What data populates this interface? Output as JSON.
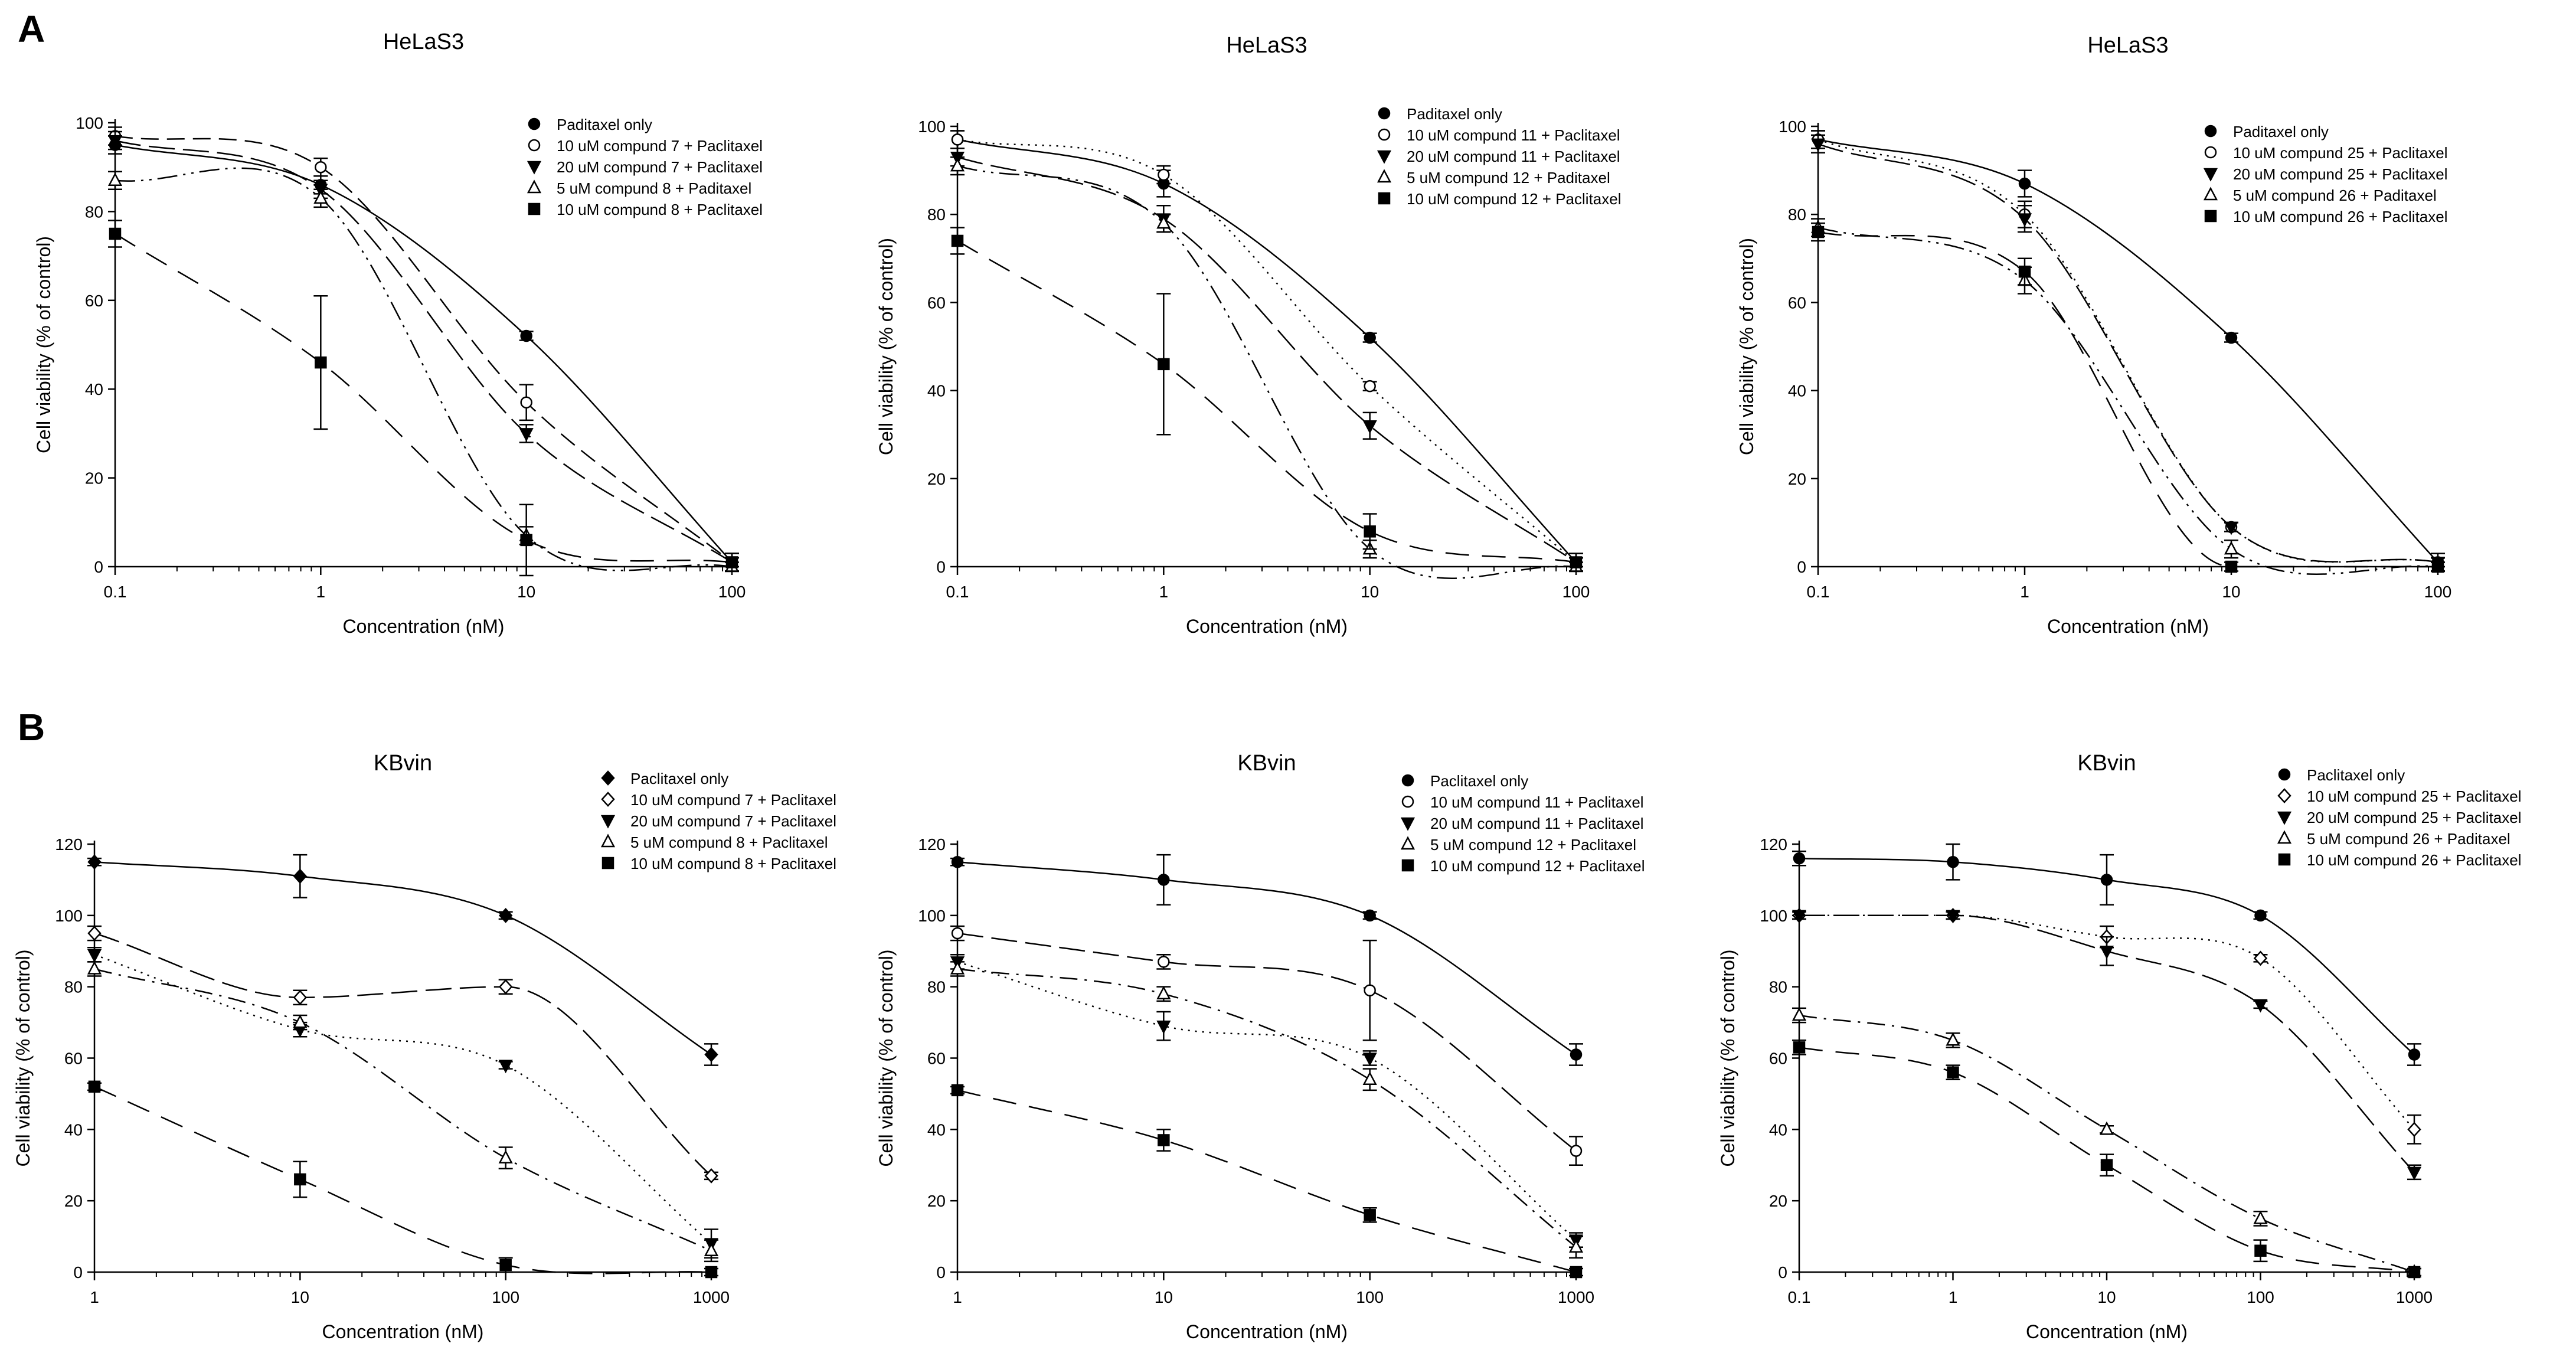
{
  "panels": {
    "a": "A",
    "b": "B"
  },
  "chart_data": [
    {
      "type": "line",
      "title": "HeLaS3",
      "xlabel": "Concentration (nM)",
      "ylabel": "Cell viability (% of control)",
      "xscale": "log",
      "xlim": [
        0.1,
        100
      ],
      "ylim": [
        0,
        100
      ],
      "xticks": [
        0.1,
        1,
        10,
        100
      ],
      "xtick_labels": [
        "0.1",
        "1",
        "10",
        "100"
      ],
      "yticks": [
        0,
        20,
        40,
        60,
        80,
        100
      ],
      "legend_position": "top-right",
      "x": [
        0.1,
        1,
        10,
        100
      ],
      "series": [
        {
          "name": "Paditaxel only",
          "marker": "circle-filled",
          "dash": "solid",
          "values": [
            95,
            86,
            52,
            1
          ],
          "errors": [
            2,
            2,
            1,
            2
          ]
        },
        {
          "name": "10 uM compund 7 + Paclitaxel",
          "marker": "circle-open",
          "dash": "dash",
          "values": [
            97,
            90,
            37,
            1
          ],
          "errors": [
            2,
            2,
            4,
            1
          ]
        },
        {
          "name": "20 uM compund 7 + Paclitaxel",
          "marker": "triangle-down-filled",
          "dash": "longdash",
          "values": [
            96,
            85,
            30,
            1
          ],
          "errors": [
            2,
            2,
            2,
            1
          ]
        },
        {
          "name": "5 uM compund 8 + Paditaxel",
          "marker": "triangle-up-open",
          "dash": "dashdotdot",
          "values": [
            87,
            83,
            7,
            0
          ],
          "errors": [
            2,
            2,
            2,
            1
          ]
        },
        {
          "name": "10 uM compund 8 + Paclitaxel",
          "marker": "square-filled",
          "dash": "bigdash",
          "values": [
            75,
            46,
            6,
            1
          ],
          "errors": [
            3,
            15,
            8,
            2
          ]
        }
      ]
    },
    {
      "type": "line",
      "title": "HeLaS3",
      "xlabel": "Concentration (nM)",
      "ylabel": "Cell viability (% of control)",
      "xscale": "log",
      "xlim": [
        0.1,
        100
      ],
      "ylim": [
        0,
        100
      ],
      "xticks": [
        0.1,
        1,
        10,
        100
      ],
      "xtick_labels": [
        "0.1",
        "1",
        "10",
        "100"
      ],
      "yticks": [
        0,
        20,
        40,
        60,
        80,
        100
      ],
      "legend_position": "top-right",
      "x": [
        0.1,
        1,
        10,
        100
      ],
      "series": [
        {
          "name": "Paditaxel only",
          "marker": "circle-filled",
          "dash": "solid",
          "values": [
            97,
            87,
            52,
            1
          ],
          "errors": [
            2,
            3,
            1,
            2
          ]
        },
        {
          "name": "10 uM compund 11 + Paclitaxel",
          "marker": "circle-open",
          "dash": "dot",
          "values": [
            97,
            89,
            41,
            1
          ],
          "errors": [
            2,
            2,
            1,
            1
          ]
        },
        {
          "name": "20 uM compund 11 + Paclitaxel",
          "marker": "triangle-down-filled",
          "dash": "longdash",
          "values": [
            93,
            79,
            32,
            1
          ],
          "errors": [
            2,
            3,
            3,
            1
          ]
        },
        {
          "name": "5 uM compund 12 + Paditaxel",
          "marker": "triangle-up-open",
          "dash": "dashdotdot",
          "values": [
            91,
            78,
            4,
            0
          ],
          "errors": [
            2,
            2,
            2,
            1
          ]
        },
        {
          "name": "10 uM compund 12 + Paclitaxel",
          "marker": "square-filled",
          "dash": "bigdash",
          "values": [
            74,
            46,
            8,
            1
          ],
          "errors": [
            3,
            16,
            4,
            2
          ]
        }
      ]
    },
    {
      "type": "line",
      "title": "HeLaS3",
      "xlabel": "Concentration (nM)",
      "ylabel": "Cell viability (% of control)",
      "xscale": "log",
      "xlim": [
        0.1,
        100
      ],
      "ylim": [
        0,
        100
      ],
      "xticks": [
        0.1,
        1,
        10,
        100
      ],
      "xtick_labels": [
        "0.1",
        "1",
        "10",
        "100"
      ],
      "yticks": [
        0,
        20,
        40,
        60,
        80,
        100
      ],
      "legend_position": "top-right",
      "x": [
        0.1,
        1,
        10,
        100
      ],
      "series": [
        {
          "name": "Paditaxel only",
          "marker": "circle-filled",
          "dash": "solid",
          "values": [
            97,
            87,
            52,
            1
          ],
          "errors": [
            2,
            3,
            1,
            2
          ]
        },
        {
          "name": "10 uM compund 25 + Paclitaxel",
          "marker": "circle-open",
          "dash": "dot",
          "values": [
            97,
            80,
            9,
            1
          ],
          "errors": [
            2,
            3,
            1,
            1
          ]
        },
        {
          "name": "20 uM compund 25 + Paclitaxel",
          "marker": "triangle-down-filled",
          "dash": "longdash",
          "values": [
            96,
            79,
            9,
            1
          ],
          "errors": [
            2,
            3,
            1,
            1
          ]
        },
        {
          "name": "5 uM compund 26 + Paditaxel",
          "marker": "triangle-up-open",
          "dash": "dashdotdot",
          "values": [
            77,
            65,
            4,
            0
          ],
          "errors": [
            2,
            3,
            2,
            1
          ]
        },
        {
          "name": "10 uM compund 26 + Paclitaxel",
          "marker": "square-filled",
          "dash": "bigdash",
          "values": [
            76,
            67,
            0,
            0
          ],
          "errors": [
            2,
            3,
            1,
            1
          ]
        }
      ]
    },
    {
      "type": "line",
      "title": "KBvin",
      "xlabel": "Concentration (nM)",
      "ylabel": "Cell viability (% of control)",
      "xscale": "log",
      "xlim": [
        1,
        1000
      ],
      "ylim": [
        0,
        120
      ],
      "xticks": [
        1,
        10,
        100,
        1000
      ],
      "xtick_labels": [
        "1",
        "10",
        "100",
        "1000"
      ],
      "yticks": [
        0,
        20,
        40,
        60,
        80,
        100,
        120
      ],
      "legend_position": "top-right",
      "x": [
        1,
        10,
        100,
        1000
      ],
      "series": [
        {
          "name": "Paclitaxel only",
          "marker": "diamond-filled",
          "dash": "solid",
          "values": [
            115,
            111,
            100,
            61
          ],
          "errors": [
            1,
            6,
            1,
            3
          ]
        },
        {
          "name": "10 uM compund 7 + Paclitaxel",
          "marker": "diamond-open",
          "dash": "longdash",
          "values": [
            95,
            77,
            80,
            27
          ],
          "errors": [
            2,
            2,
            2,
            1
          ]
        },
        {
          "name": "20 uM compund 7 + Paclitaxel",
          "marker": "triangle-down-filled",
          "dash": "dot",
          "values": [
            89,
            68,
            58,
            8
          ],
          "errors": [
            2,
            2,
            1,
            4
          ]
        },
        {
          "name": "5 uM compund 8 + Paclitaxel",
          "marker": "triangle-up-open",
          "dash": "dashdot",
          "values": [
            85,
            70,
            32,
            6
          ],
          "errors": [
            2,
            2,
            3,
            3
          ]
        },
        {
          "name": "10 uM compund 8 + Paclitaxel",
          "marker": "square-filled",
          "dash": "bigdash",
          "values": [
            52,
            26,
            2,
            0
          ],
          "errors": [
            1,
            5,
            2,
            1
          ]
        }
      ]
    },
    {
      "type": "line",
      "title": "KBvin",
      "xlabel": "Concentration (nM)",
      "ylabel": "Cell viability (% of control)",
      "xscale": "log",
      "xlim": [
        1,
        1000
      ],
      "ylim": [
        0,
        120
      ],
      "xticks": [
        1,
        10,
        100,
        1000
      ],
      "xtick_labels": [
        "1",
        "10",
        "100",
        "1000"
      ],
      "yticks": [
        0,
        20,
        40,
        60,
        80,
        100,
        120
      ],
      "legend_position": "top-right",
      "x": [
        1,
        10,
        100,
        1000
      ],
      "series": [
        {
          "name": "Paclitaxel only",
          "marker": "circle-filled",
          "dash": "solid",
          "values": [
            115,
            110,
            100,
            61
          ],
          "errors": [
            1,
            7,
            1,
            3
          ]
        },
        {
          "name": "10 uM compund 11 + Paclitaxel",
          "marker": "circle-open",
          "dash": "longdash",
          "values": [
            95,
            87,
            79,
            34
          ],
          "errors": [
            2,
            2,
            14,
            4
          ]
        },
        {
          "name": "20 uM compund 11 + Paclitaxel",
          "marker": "triangle-down-filled",
          "dash": "dot",
          "values": [
            87,
            69,
            60,
            9
          ],
          "errors": [
            2,
            4,
            2,
            2
          ]
        },
        {
          "name": "5 uM compund 12 + Paclitaxel",
          "marker": "triangle-up-open",
          "dash": "dashdot",
          "values": [
            85,
            78,
            54,
            7
          ],
          "errors": [
            2,
            2,
            3,
            3
          ]
        },
        {
          "name": "10 uM compund 12 + Paclitaxel",
          "marker": "square-filled",
          "dash": "bigdash",
          "values": [
            51,
            37,
            16,
            0
          ],
          "errors": [
            1,
            3,
            2,
            1
          ]
        }
      ]
    },
    {
      "type": "line",
      "title": "KBvin",
      "xlabel": "Concentration (nM)",
      "ylabel": "Cell viability (% of control)",
      "xscale": "log",
      "xlim": [
        0.1,
        1000
      ],
      "ylim": [
        0,
        120
      ],
      "xticks": [
        0.1,
        1,
        10,
        100,
        1000
      ],
      "xtick_labels": [
        "0.1",
        "1",
        "10",
        "100",
        "1000"
      ],
      "yticks": [
        0,
        20,
        40,
        60,
        80,
        100,
        120
      ],
      "legend_position": "top-right",
      "x": [
        0.1,
        1,
        10,
        100,
        1000
      ],
      "series": [
        {
          "name": "Paclitaxel only",
          "marker": "circle-filled",
          "dash": "solid",
          "values": [
            116,
            115,
            110,
            100,
            61
          ],
          "errors": [
            2,
            5,
            7,
            1,
            3
          ]
        },
        {
          "name": "10 uM compund 25 + Paclitaxel",
          "marker": "diamond-open",
          "dash": "dot",
          "values": [
            100,
            100,
            94,
            88,
            40
          ],
          "errors": [
            1,
            1,
            3,
            1,
            4
          ]
        },
        {
          "name": "20 uM compund 25 + Paclitaxel",
          "marker": "triangle-down-filled",
          "dash": "longdash",
          "values": [
            100,
            100,
            90,
            75,
            28
          ],
          "errors": [
            1,
            1,
            4,
            1,
            2
          ]
        },
        {
          "name": "5 uM compund 26 + Paditaxel",
          "marker": "triangle-up-open",
          "dash": "dashdot",
          "values": [
            72,
            65,
            40,
            15,
            0
          ],
          "errors": [
            2,
            2,
            1,
            2,
            1
          ]
        },
        {
          "name": "10 uM compund 26 + Paclitaxel",
          "marker": "square-filled",
          "dash": "bigdash",
          "values": [
            63,
            56,
            30,
            6,
            0
          ],
          "errors": [
            2,
            2,
            3,
            3,
            1
          ]
        }
      ]
    }
  ]
}
